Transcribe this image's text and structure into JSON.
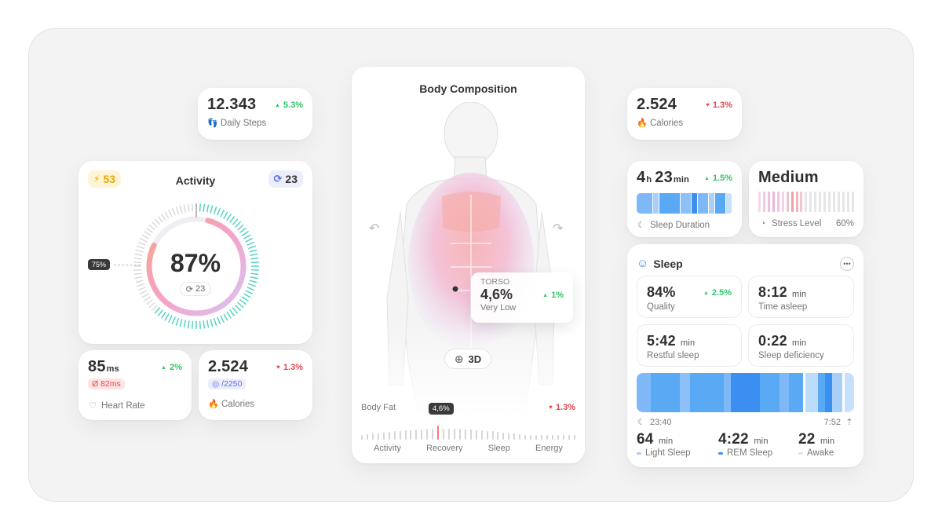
{
  "daily_steps": {
    "value": "12.343",
    "change": "5.3%",
    "label": "Daily Steps"
  },
  "activity": {
    "title": "Activity",
    "energy_badge": "53",
    "cycle_badge": "23",
    "percent": "87%",
    "inner_badge": "23",
    "pointer_label": "75%",
    "progress_fraction": 0.87
  },
  "heart_rate": {
    "value": "85",
    "unit": "ms",
    "sub_badge": "Ø 82ms",
    "change": "2%",
    "label": "Heart Rate"
  },
  "calories_left": {
    "value": "2.524",
    "change": "1.3%",
    "goal": "/2250",
    "label": "Calories"
  },
  "body_composition": {
    "title": "Body Composition",
    "torso": {
      "label": "TORSO",
      "value": "4,6%",
      "status": "Very Low",
      "change": "1%"
    },
    "view_button": "3D",
    "body_fat_label": "Body Fat",
    "body_fat_change": "1.3%",
    "slider_value": "4,6%",
    "axis_labels": [
      "Activity",
      "Recovery",
      "Sleep",
      "Energy"
    ]
  },
  "calories_right": {
    "value": "2.524",
    "change": "1.3%",
    "label": "Calories"
  },
  "sleep_duration": {
    "hours": "4",
    "h_unit": "h",
    "minutes": "23",
    "min_unit": "min",
    "change": "1.5%",
    "label": "Sleep Duration"
  },
  "stress": {
    "value": "Medium",
    "label": "Stress Level",
    "percent": "60%"
  },
  "sleep": {
    "title": "Sleep",
    "quality": {
      "value": "84%",
      "change": "2.5%",
      "label": "Quality"
    },
    "time_asleep": {
      "value": "8:12",
      "unit": "min",
      "label": "Time asleep"
    },
    "restful": {
      "value": "5:42",
      "unit": "min",
      "label": "Restful sleep"
    },
    "deficiency": {
      "value": "0:22",
      "unit": "min",
      "label": "Sleep deficiency"
    },
    "start_time": "23:40",
    "end_time": "7:52",
    "light": {
      "value": "64",
      "unit": "min",
      "label": "Light Sleep"
    },
    "rem": {
      "value": "4:22",
      "unit": "min",
      "label": "REM Sleep"
    },
    "awake": {
      "value": "22",
      "unit": "min",
      "label": "Awake"
    }
  },
  "colors": {
    "green": "#2fc46a",
    "red": "#e5484d",
    "teal": "#4dd0c0",
    "blue": "#5aa9f5",
    "pink": "#f2a6c7"
  }
}
